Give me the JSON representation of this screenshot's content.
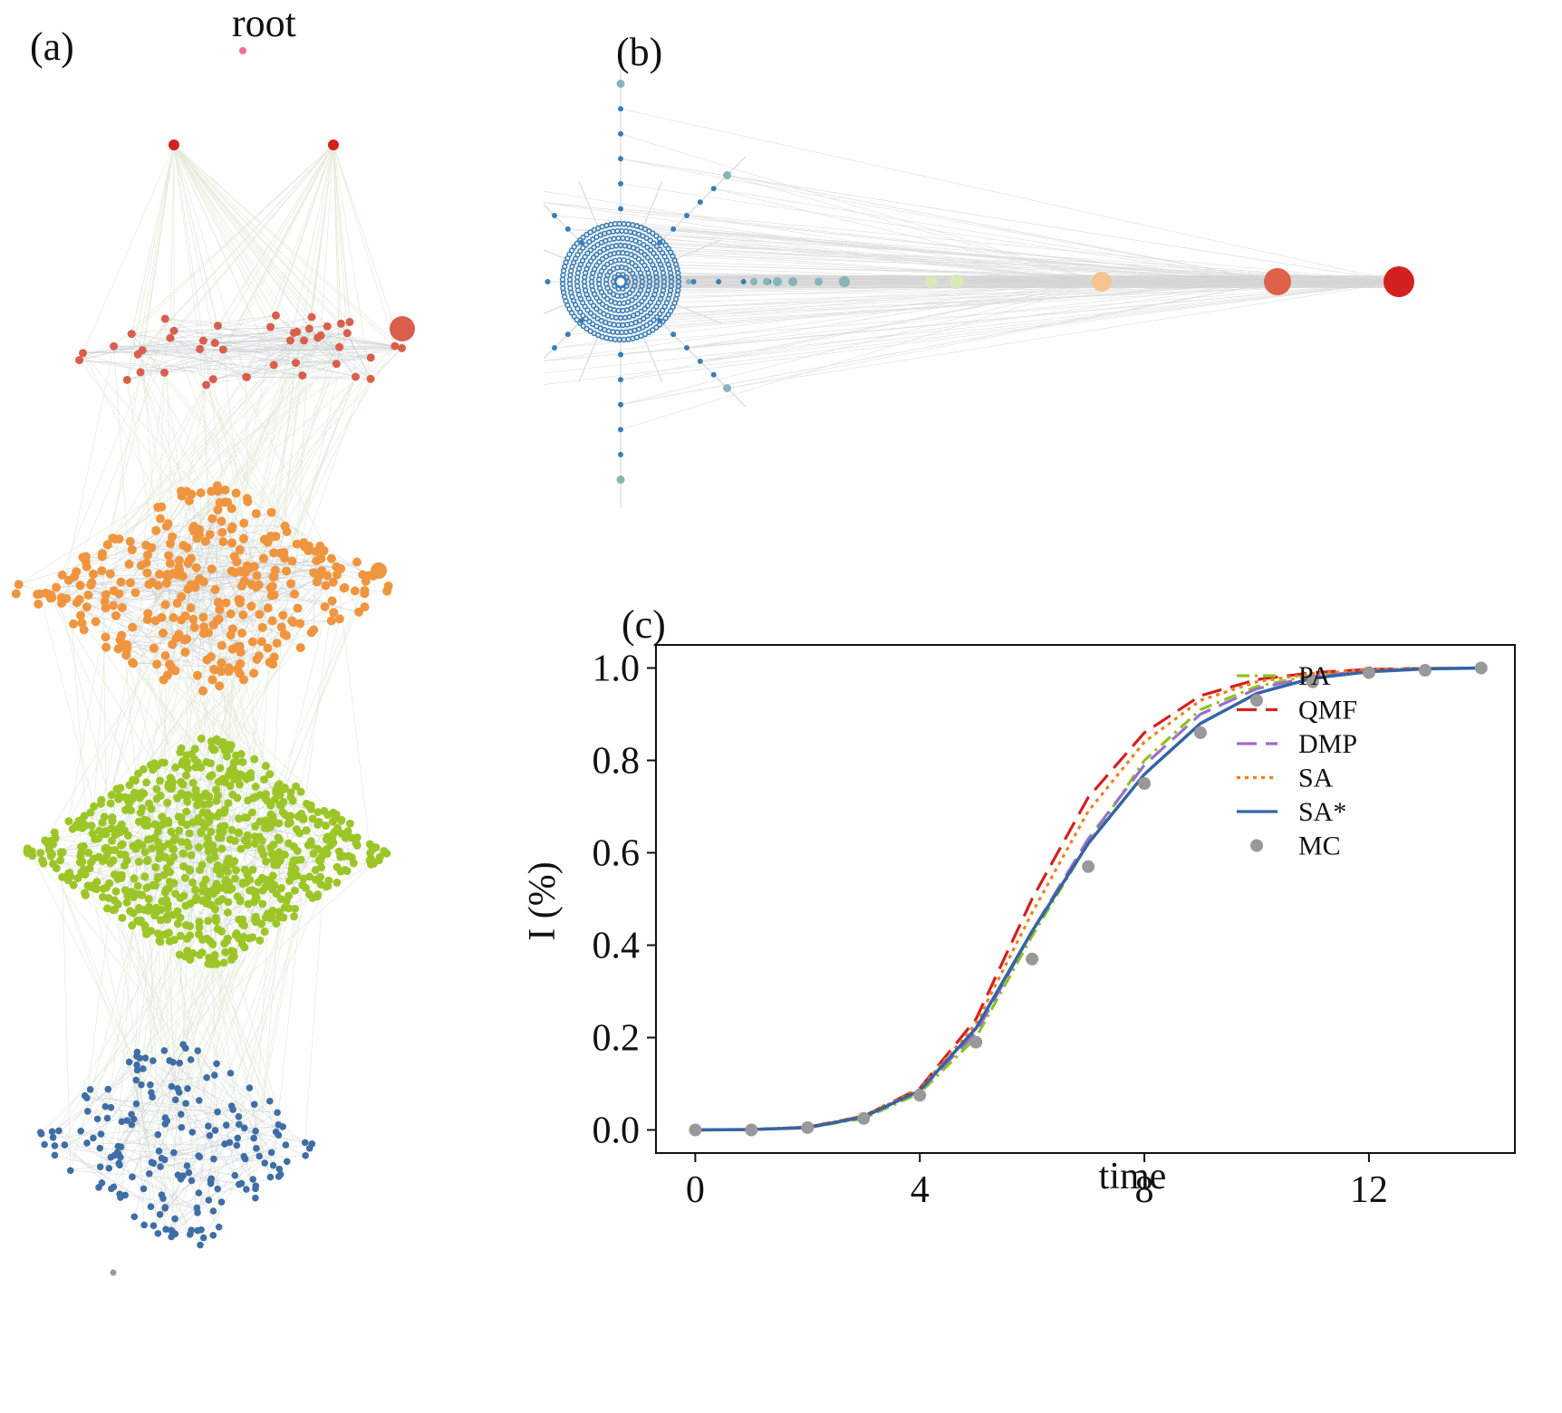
{
  "panels": {
    "a": {
      "label": "(a)",
      "root_label": "root"
    },
    "b": {
      "label": "(b)"
    },
    "c": {
      "label": "(c)"
    }
  },
  "layers": {
    "root": {
      "color": "#f06e9a",
      "count": 1
    },
    "l1": {
      "color": "#d42020",
      "count": 2
    },
    "l2": {
      "color": "#d95f4c",
      "count": 45
    },
    "l3": {
      "color": "#f0953f",
      "count": 330
    },
    "l4": {
      "color": "#9cc628",
      "count": 780
    },
    "l5": {
      "color": "#3f6ea6",
      "count": 190
    },
    "bottom": {
      "color": "#9a9a9a",
      "count": 1
    }
  },
  "star_colors": {
    "hub": "#3a7db8",
    "outer": "#86b4b8",
    "chain": [
      "#86b4b8",
      "#86b4b8",
      "#86b4b8",
      "#86b4b8",
      "#86b4b8",
      "#d8e8b8",
      "#d8e8b8",
      "#f6c48e",
      "#e0614a",
      "#d42020"
    ]
  },
  "chart_data": {
    "type": "line",
    "title": "",
    "xlabel": "time",
    "ylabel": "I (%)",
    "xlim": [
      -0.7,
      14.6
    ],
    "ylim": [
      -0.05,
      1.05
    ],
    "xticks": [
      0,
      4,
      8,
      12
    ],
    "yticks": [
      0.0,
      0.2,
      0.4,
      0.6,
      0.8,
      1.0
    ],
    "ytick_labels": [
      "0.0",
      "0.2",
      "0.4",
      "0.6",
      "0.8",
      "1.0"
    ],
    "x": [
      0,
      1,
      2,
      3,
      4,
      5,
      6,
      7,
      8,
      9,
      10,
      11,
      12,
      13,
      14
    ],
    "series": [
      {
        "name": "PA",
        "style": "dashdot",
        "color": "#8fc31f",
        "values": [
          0.0,
          0.001,
          0.005,
          0.025,
          0.08,
          0.2,
          0.42,
          0.62,
          0.8,
          0.91,
          0.96,
          0.985,
          0.995,
          0.999,
          1.0
        ]
      },
      {
        "name": "QMF",
        "style": "dashed",
        "color": "#d42020",
        "values": [
          0.0,
          0.001,
          0.006,
          0.03,
          0.09,
          0.24,
          0.5,
          0.72,
          0.86,
          0.94,
          0.975,
          0.99,
          0.997,
          0.999,
          1.0
        ]
      },
      {
        "name": "DMP",
        "style": "dashed",
        "color": "#9a6fcf",
        "values": [
          0.0,
          0.001,
          0.005,
          0.028,
          0.085,
          0.21,
          0.43,
          0.63,
          0.79,
          0.9,
          0.955,
          0.982,
          0.994,
          0.998,
          1.0
        ]
      },
      {
        "name": "SA",
        "style": "dotted",
        "color": "#f07f1e",
        "values": [
          0.0,
          0.001,
          0.006,
          0.03,
          0.088,
          0.23,
          0.47,
          0.69,
          0.84,
          0.93,
          0.97,
          0.988,
          0.996,
          0.999,
          1.0
        ]
      },
      {
        "name": "SA*",
        "style": "solid",
        "color": "#3465a4",
        "values": [
          0.0,
          0.001,
          0.005,
          0.028,
          0.085,
          0.22,
          0.43,
          0.62,
          0.77,
          0.88,
          0.945,
          0.978,
          0.992,
          0.998,
          1.0
        ]
      },
      {
        "name": "MC",
        "style": "markers",
        "color": "#999999",
        "values": [
          0.0,
          0.0,
          0.005,
          0.025,
          0.075,
          0.19,
          0.37,
          0.57,
          0.75,
          0.86,
          0.93,
          0.97,
          0.99,
          0.995,
          1.0
        ]
      }
    ],
    "legend": "right"
  }
}
